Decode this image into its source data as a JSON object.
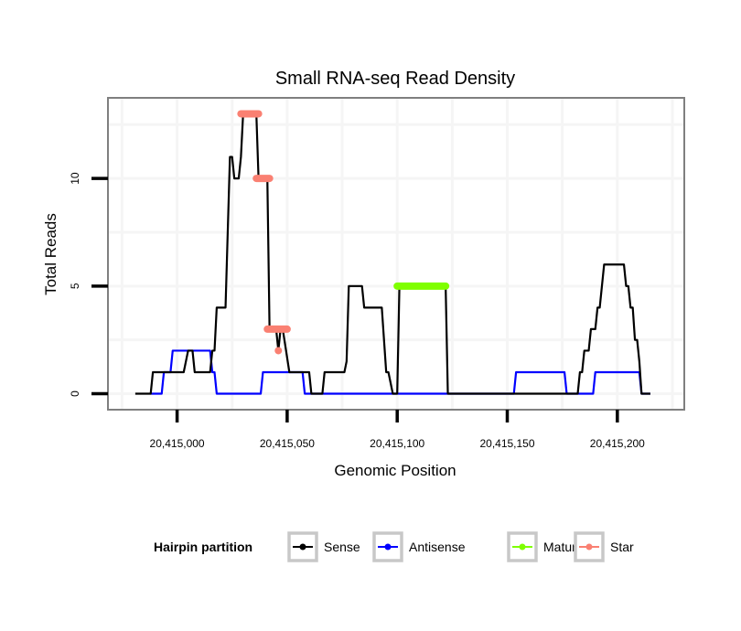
{
  "chart_data": {
    "type": "line",
    "title": "Small RNA-seq Read Density",
    "xlabel": "Genomic Position",
    "ylabel": "Total Reads",
    "x_offset": 20415000,
    "xlim": [
      -31,
      230
    ],
    "ylim": [
      -0.7,
      13.7
    ],
    "x_ticks": [
      {
        "value": 0,
        "label": "20,415,000"
      },
      {
        "value": 50,
        "label": "20,415,050"
      },
      {
        "value": 100,
        "label": "20,415,100"
      },
      {
        "value": 150,
        "label": "20,415,150"
      },
      {
        "value": 200,
        "label": "20,415,200"
      }
    ],
    "y_ticks": [
      {
        "value": 0,
        "label": "0"
      },
      {
        "value": 5,
        "label": "5"
      },
      {
        "value": 10,
        "label": "10"
      }
    ],
    "grid": true,
    "legend": {
      "title": "Hairpin partition",
      "position": "bottom",
      "entries": [
        {
          "name": "Sense",
          "color": "#000000"
        },
        {
          "name": "Antisense",
          "color": "#0000FF"
        },
        {
          "name": "Mature",
          "color": "#7FFF00"
        },
        {
          "name": "Star",
          "color": "#FA8072"
        }
      ]
    },
    "series": [
      {
        "name": "Sense",
        "color": "#000000",
        "kind": "line",
        "points": [
          [
            -19,
            0
          ],
          [
            -12,
            0
          ],
          [
            -11,
            1
          ],
          [
            3,
            1
          ],
          [
            5,
            2
          ],
          [
            7,
            2
          ],
          [
            8,
            1
          ],
          [
            15,
            1
          ],
          [
            16,
            2
          ],
          [
            17,
            2
          ],
          [
            18,
            4
          ],
          [
            22,
            4
          ],
          [
            24,
            11
          ],
          [
            25,
            11
          ],
          [
            26,
            10
          ],
          [
            28,
            10
          ],
          [
            29,
            11
          ],
          [
            30,
            13
          ],
          [
            36,
            13
          ],
          [
            37,
            10
          ],
          [
            41,
            10
          ],
          [
            42,
            3
          ],
          [
            45,
            3
          ],
          [
            46,
            2
          ],
          [
            47,
            3
          ],
          [
            48,
            3
          ],
          [
            51,
            1
          ],
          [
            60,
            1
          ],
          [
            61,
            0
          ],
          [
            66,
            0
          ],
          [
            67,
            1
          ],
          [
            76,
            1
          ],
          [
            77,
            1.5
          ],
          [
            78,
            5
          ],
          [
            84,
            5
          ],
          [
            85,
            4
          ],
          [
            93,
            4
          ],
          [
            95,
            1
          ],
          [
            96,
            1
          ],
          [
            98,
            0
          ],
          [
            100,
            0
          ],
          [
            101,
            5
          ],
          [
            122,
            5
          ],
          [
            123,
            0
          ],
          [
            182,
            0
          ],
          [
            183,
            1
          ],
          [
            184,
            1
          ],
          [
            185,
            2
          ],
          [
            187,
            2
          ],
          [
            188,
            3
          ],
          [
            190,
            3
          ],
          [
            191,
            4
          ],
          [
            192,
            4
          ],
          [
            194,
            6
          ],
          [
            203,
            6
          ],
          [
            204,
            5
          ],
          [
            205,
            5
          ],
          [
            206,
            4
          ],
          [
            207,
            4
          ],
          [
            208,
            2.5
          ],
          [
            209,
            2.5
          ],
          [
            210,
            1.5
          ],
          [
            211,
            0
          ],
          [
            215,
            0
          ]
        ]
      },
      {
        "name": "Antisense",
        "color": "#0000FF",
        "kind": "line",
        "points": [
          [
            -12,
            0
          ],
          [
            -7,
            0
          ],
          [
            -6,
            1
          ],
          [
            -3,
            1
          ],
          [
            -2,
            2
          ],
          [
            15,
            2
          ],
          [
            16,
            1
          ],
          [
            17,
            1
          ],
          [
            18,
            0
          ],
          [
            38,
            0
          ],
          [
            39,
            1
          ],
          [
            57,
            1
          ],
          [
            58,
            0
          ],
          [
            153,
            0
          ],
          [
            154,
            1
          ],
          [
            176,
            1
          ],
          [
            177,
            0
          ],
          [
            189,
            0
          ],
          [
            190,
            1
          ],
          [
            210,
            1
          ],
          [
            211,
            0
          ],
          [
            215,
            0
          ]
        ]
      },
      {
        "name": "Mature",
        "color": "#7FFF00",
        "kind": "segment",
        "points": [
          [
            100,
            5
          ],
          [
            122,
            5
          ]
        ]
      },
      {
        "name": "Star",
        "color": "#FA8072",
        "kind": "segments",
        "segments": [
          [
            [
              29,
              13
            ],
            [
              37,
              13
            ]
          ],
          [
            [
              36,
              10
            ],
            [
              42,
              10
            ]
          ],
          [
            [
              41,
              3
            ],
            [
              50,
              3
            ]
          ],
          [
            [
              46,
              2
            ],
            [
              46,
              2
            ]
          ]
        ]
      }
    ]
  }
}
